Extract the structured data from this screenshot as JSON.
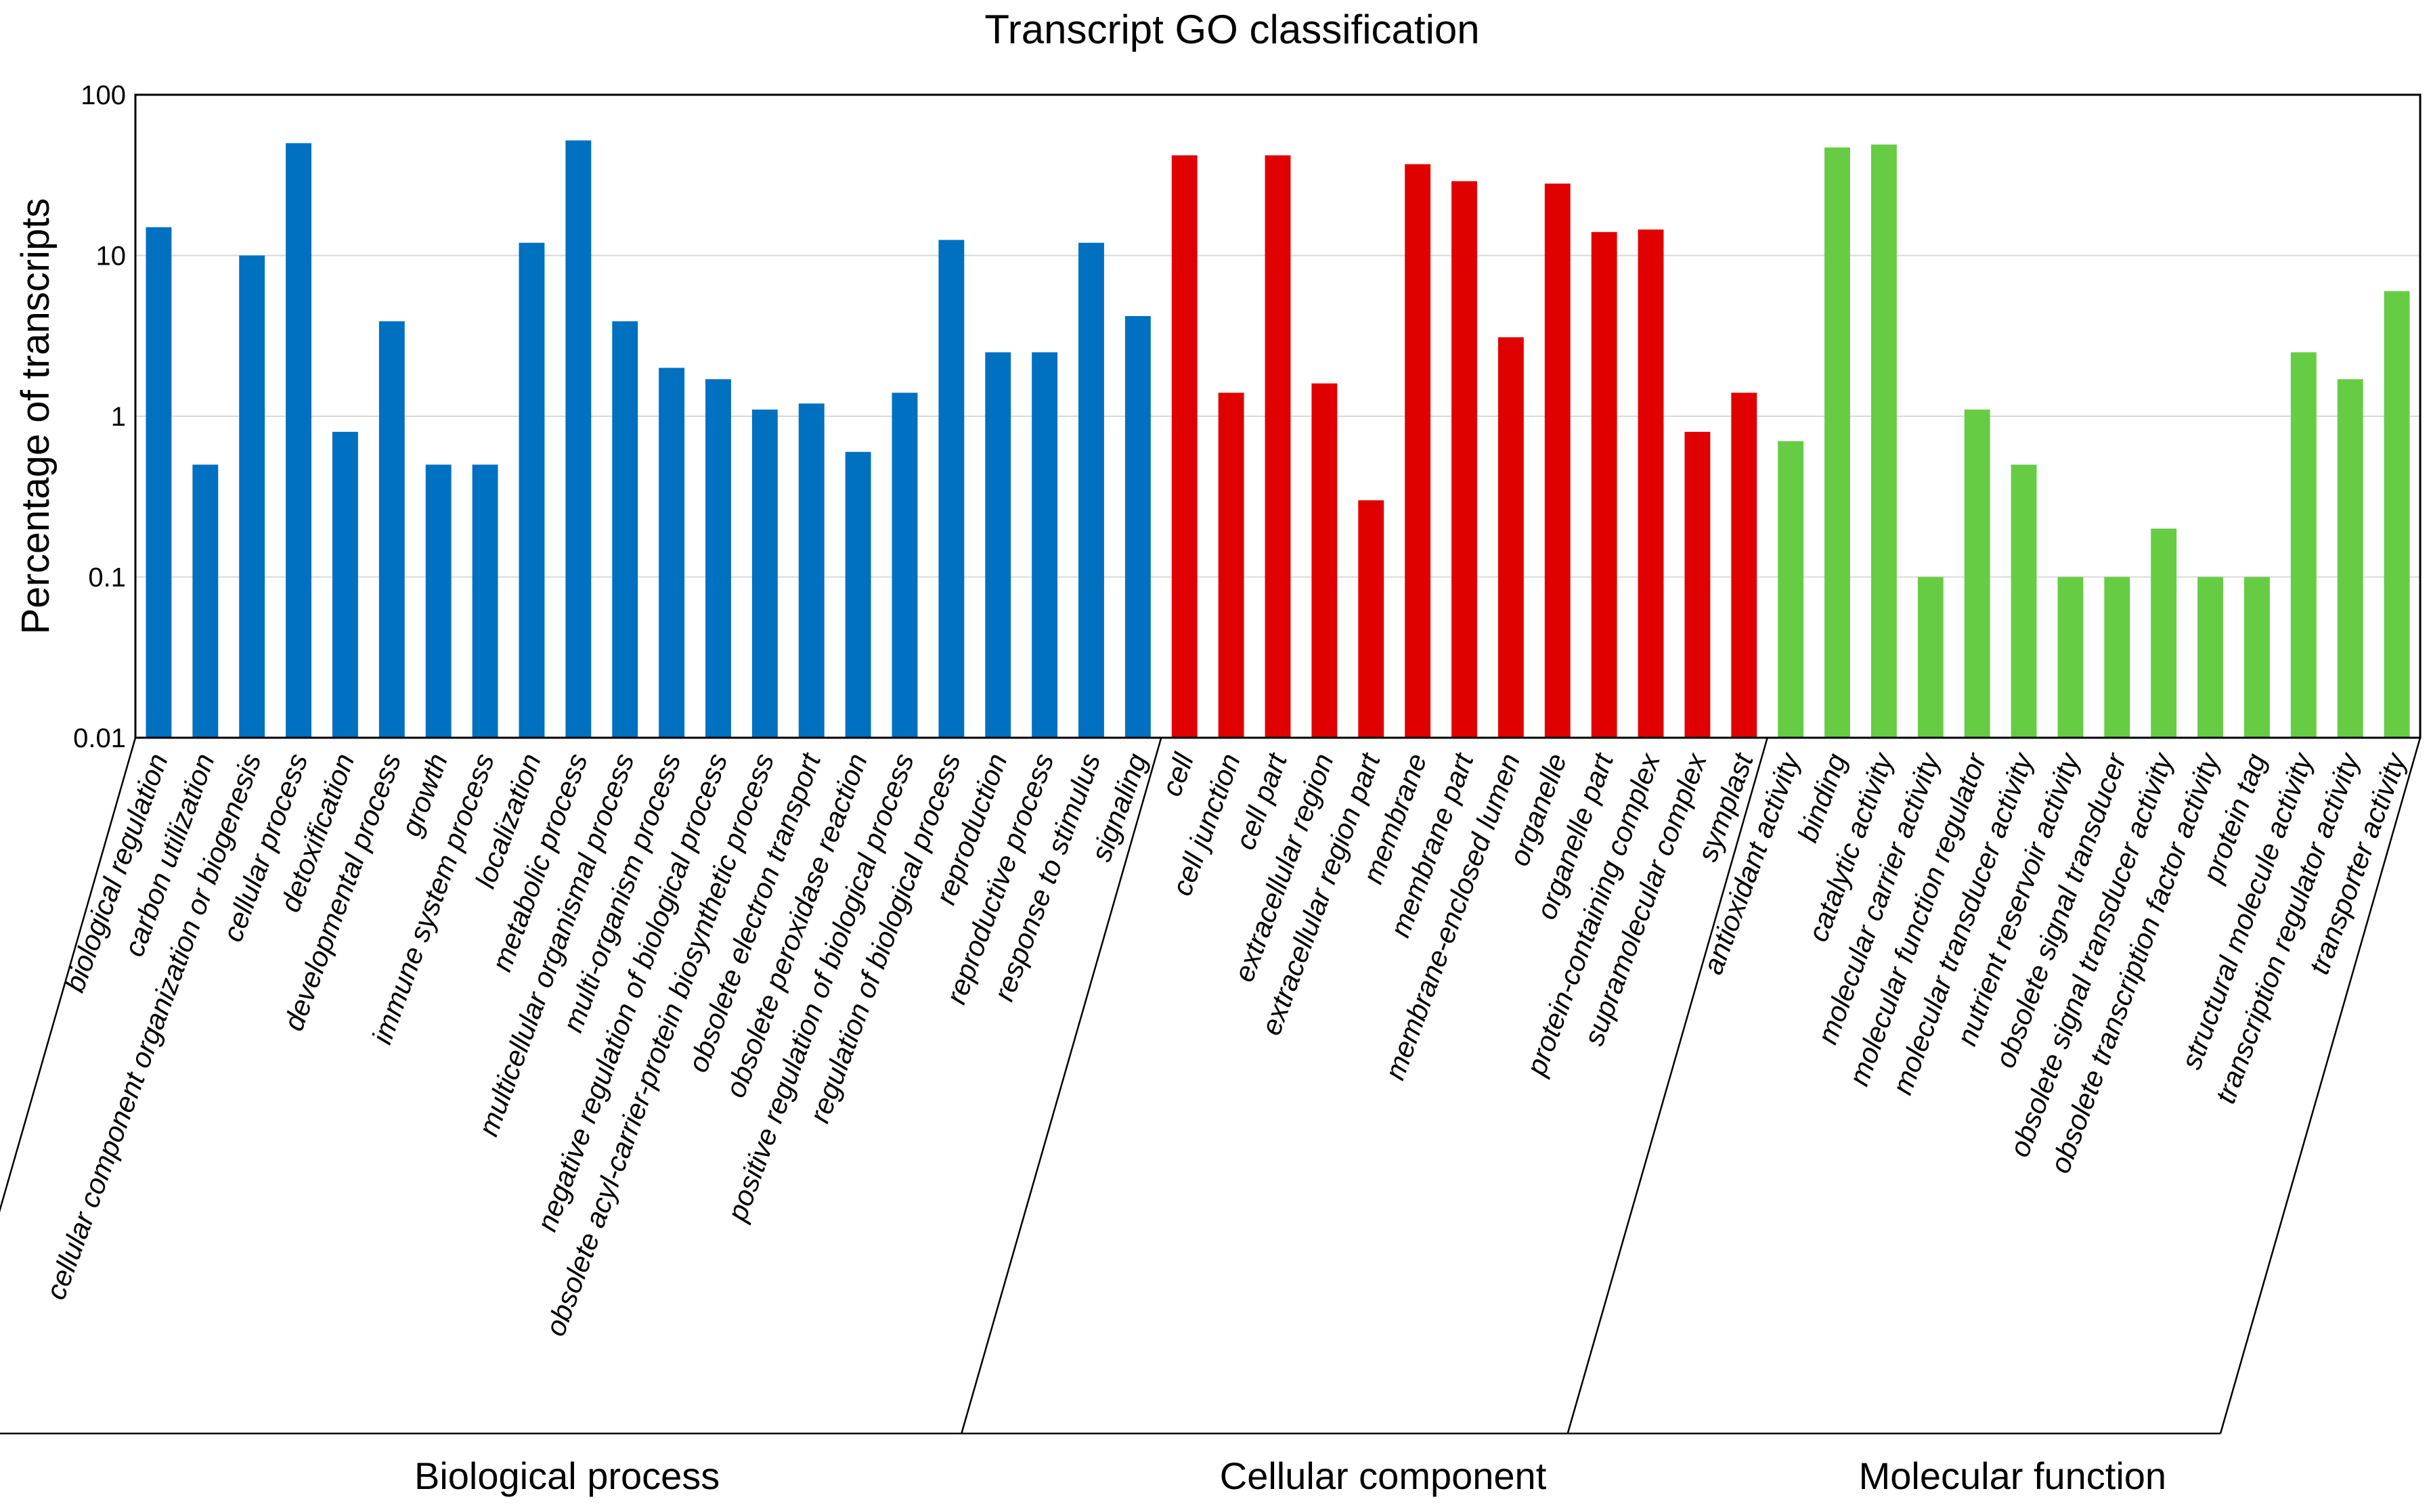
{
  "chart_data": {
    "type": "bar",
    "title": "Transcript GO classification",
    "ylabel": "Percentage of transcripts",
    "xlabel": "",
    "yscale": "log",
    "ylim": [
      0.01,
      100
    ],
    "yticks": [
      "0.01",
      "0.1",
      "1",
      "10",
      "100"
    ],
    "grid": true,
    "groups": [
      {
        "name": "Biological process",
        "color": "#0070c0",
        "categories": [
          "biological regulation",
          "carbon utilization",
          "cellular component organization or biogenesis",
          "cellular process",
          "detoxification",
          "developmental process",
          "growth",
          "immune system process",
          "localization",
          "metabolic process",
          "multicellular organismal process",
          "multi-organism process",
          "negative regulation of biological process",
          "obsolete acyl-carrier-protein biosynthetic process",
          "obsolete electron transport",
          "obsolete peroxidase reaction",
          "positive regulation of biological process",
          "regulation of biological process",
          "reproduction",
          "reproductive process",
          "response to stimulus",
          "signaling"
        ],
        "values": [
          15,
          0.5,
          10,
          50,
          0.8,
          3.9,
          0.5,
          0.5,
          12,
          52,
          3.9,
          2.0,
          1.7,
          1.1,
          1.2,
          0.6,
          1.4,
          12.5,
          2.5,
          2.5,
          12,
          4.2
        ]
      },
      {
        "name": "Cellular component",
        "color": "#e00000",
        "categories": [
          "cell",
          "cell junction",
          "cell part",
          "extracellular region",
          "extracellular region part",
          "membrane",
          "membrane part",
          "membrane-enclosed lumen",
          "organelle",
          "organelle part",
          "protein-containing complex",
          "supramolecular complex",
          "symplast"
        ],
        "values": [
          42,
          1.4,
          42,
          1.6,
          0.3,
          37,
          29,
          3.1,
          28,
          14,
          14.5,
          0.8,
          1.4
        ]
      },
      {
        "name": "Molecular function",
        "color": "#66cc44",
        "categories": [
          "antioxidant activity",
          "binding",
          "catalytic activity",
          "molecular carrier activity",
          "molecular function regulator",
          "molecular transducer activity",
          "nutrient reservoir activity",
          "obsolete signal transducer",
          "obsolete signal transducer activity",
          "obsolete transcription factor activity",
          "protein tag",
          "structural molecule activity",
          "transcription regulator activity",
          "transporter activity"
        ],
        "values": [
          0.7,
          47,
          49,
          0.1,
          1.1,
          0.5,
          0.1,
          0.1,
          0.2,
          0.1,
          0.1,
          2.5,
          1.7,
          6.0
        ]
      }
    ]
  }
}
